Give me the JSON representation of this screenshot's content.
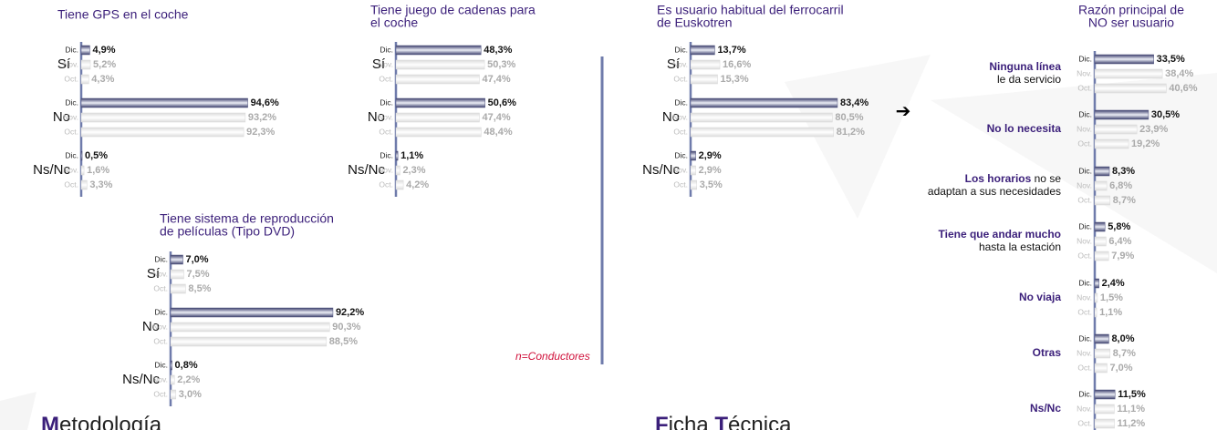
{
  "chart_data": [
    {
      "type": "hbar",
      "title": [
        "Tiene GPS en el coche"
      ],
      "categories": [
        "Sí",
        "No",
        "Ns/Nc"
      ],
      "xlim": [
        0,
        100
      ],
      "series": [
        {
          "name": "Dic.",
          "color": "#50547f",
          "values": [
            4.9,
            94.6,
            0.5
          ],
          "value_labels": [
            "4,9%",
            "94,6%",
            "0,5%"
          ]
        },
        {
          "name": "Nov.",
          "color": "#d8d8d8",
          "values": [
            5.2,
            93.2,
            1.6
          ],
          "value_labels": [
            "5,2%",
            "93,2%",
            "1,6%"
          ]
        },
        {
          "name": "Oct.",
          "color": "#d8d8d8",
          "values": [
            4.3,
            92.3,
            3.3
          ],
          "value_labels": [
            "4,3%",
            "92,3%",
            "3,3%"
          ]
        }
      ]
    },
    {
      "type": "hbar",
      "title": [
        "Tiene juego de cadenas para",
        "el coche"
      ],
      "categories": [
        "Sí",
        "No",
        "Ns/Nc"
      ],
      "xlim": [
        0,
        100
      ],
      "series": [
        {
          "name": "Dic.",
          "color": "#50547f",
          "values": [
            48.3,
            50.6,
            1.1
          ],
          "value_labels": [
            "48,3%",
            "50,6%",
            "1,1%"
          ]
        },
        {
          "name": "Nov.",
          "color": "#d8d8d8",
          "values": [
            50.3,
            47.4,
            2.3
          ],
          "value_labels": [
            "50,3%",
            "47,4%",
            "2,3%"
          ]
        },
        {
          "name": "Oct.",
          "color": "#d8d8d8",
          "values": [
            47.4,
            48.4,
            4.2
          ],
          "value_labels": [
            "47,4%",
            "48,4%",
            "4,2%"
          ]
        }
      ]
    },
    {
      "type": "hbar",
      "title": [
        "Tiene sistema de reproducción",
        "de películas (Tipo DVD)"
      ],
      "categories": [
        "Sí",
        "No",
        "Ns/Nc"
      ],
      "xlim": [
        0,
        100
      ],
      "series": [
        {
          "name": "Dic.",
          "color": "#50547f",
          "values": [
            7.0,
            92.2,
            0.8
          ],
          "value_labels": [
            "7,0%",
            "92,2%",
            "0,8%"
          ]
        },
        {
          "name": "Nov.",
          "color": "#d8d8d8",
          "values": [
            7.5,
            90.3,
            2.2
          ],
          "value_labels": [
            "7,5%",
            "90,3%",
            "2,2%"
          ]
        },
        {
          "name": "Oct.",
          "color": "#d8d8d8",
          "values": [
            8.5,
            88.5,
            3.0
          ],
          "value_labels": [
            "8,5%",
            "88,5%",
            "3,0%"
          ]
        }
      ]
    },
    {
      "type": "hbar",
      "title": [
        "Es usuario habitual del ferrocarril",
        "de Euskotren"
      ],
      "categories": [
        "Sí",
        "No",
        "Ns/Nc"
      ],
      "xlim": [
        0,
        100
      ],
      "series": [
        {
          "name": "Dic.",
          "color": "#50547f",
          "values": [
            13.7,
            83.4,
            2.9
          ],
          "value_labels": [
            "13,7%",
            "83,4%",
            "2,9%"
          ]
        },
        {
          "name": "Nov.",
          "color": "#d8d8d8",
          "values": [
            16.6,
            80.5,
            2.9
          ],
          "value_labels": [
            "16,6%",
            "80,5%",
            "2,9%"
          ]
        },
        {
          "name": "Oct.",
          "color": "#d8d8d8",
          "values": [
            15.3,
            81.2,
            3.5
          ],
          "value_labels": [
            "15,3%",
            "81,2%",
            "3,5%"
          ]
        }
      ]
    },
    {
      "type": "hbar",
      "title": [
        "Razón principal de",
        "NO ser usuario"
      ],
      "xlim": [
        0,
        100
      ],
      "categories": [
        [
          [
            {
              "text": "Ninguna línea",
              "bold": true
            }
          ],
          [
            {
              "text": "le da servicio",
              "bold": false
            }
          ]
        ],
        [
          [
            {
              "text": "No lo necesita",
              "bold": true
            }
          ]
        ],
        [
          [
            {
              "text": "Los horarios",
              "bold": true
            },
            {
              "text": " no se",
              "bold": false
            }
          ],
          [
            {
              "text": "adaptan a sus necesidades",
              "bold": false
            }
          ]
        ],
        [
          [
            {
              "text": "Tiene que andar mucho",
              "bold": true
            }
          ],
          [
            {
              "text": "hasta la estación",
              "bold": false
            }
          ]
        ],
        [
          [
            {
              "text": "No viaja",
              "bold": true
            }
          ]
        ],
        [
          [
            {
              "text": "Otras",
              "bold": true
            }
          ]
        ],
        [
          [
            {
              "text": "Ns/Nc",
              "bold": true
            }
          ]
        ]
      ],
      "series": [
        {
          "name": "Dic.",
          "color": "#50547f",
          "values": [
            33.5,
            30.5,
            8.3,
            5.8,
            2.4,
            8.0,
            11.5
          ],
          "value_labels": [
            "33,5%",
            "30,5%",
            "8,3%",
            "5,8%",
            "2,4%",
            "8,0%",
            "11,5%"
          ]
        },
        {
          "name": "Nov.",
          "color": "#d8d8d8",
          "values": [
            38.4,
            23.9,
            6.8,
            6.4,
            1.5,
            8.7,
            11.1
          ],
          "value_labels": [
            "38,4%",
            "23,9%",
            "6,8%",
            "6,4%",
            "1,5%",
            "8,7%",
            "11,1%"
          ]
        },
        {
          "name": "Oct.",
          "color": "#d8d8d8",
          "values": [
            40.6,
            19.2,
            8.7,
            7.9,
            1.1,
            7.0,
            11.2
          ],
          "value_labels": [
            "40,6%",
            "19,2%",
            "8,7%",
            "7,9%",
            "1,1%",
            "7,0%",
            "11,2%"
          ]
        }
      ]
    }
  ],
  "note": "n=Conductores",
  "sections": [
    [
      {
        "text": "M",
        "accent": true
      },
      {
        "text": "etodología",
        "accent": false
      }
    ],
    [
      {
        "text": "F",
        "accent": true
      },
      {
        "text": "icha ",
        "accent": false
      },
      {
        "text": "T",
        "accent": true
      },
      {
        "text": "écnica",
        "accent": false
      }
    ]
  ]
}
